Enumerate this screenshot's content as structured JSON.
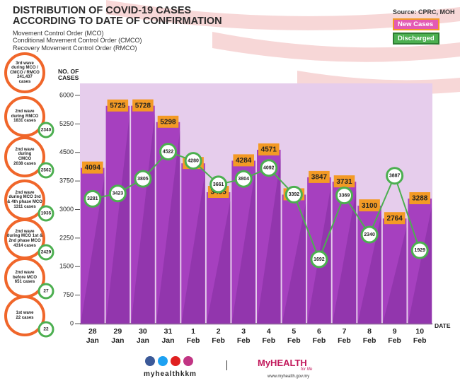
{
  "chart_data": {
    "type": "bar",
    "title": "DISTRIBUTION OF COVID-19 CASES\nACCORDING TO DATE OF CONFIRMATION",
    "notes": [
      "Movement Control Order (MCO)",
      "Conditional Movement Control Order (CMCO)",
      "Recovery Movement Control Order (RMCO)"
    ],
    "source": "Source: CPRC, MOH",
    "y_label": "NO. OF\nCASES",
    "x_label": "DATE",
    "categories": [
      "28\nJan",
      "29\nJan",
      "30\nJan",
      "31\nJan",
      "1\nFeb",
      "2\nFeb",
      "3\nFeb",
      "4\nFeb",
      "5\nFeb",
      "6\nFeb",
      "7\nFeb",
      "8\nFeb",
      "9\nFeb",
      "10\nFeb"
    ],
    "series": [
      {
        "name": "New Cases",
        "color": "#a640bf",
        "label_color": "#f39a25",
        "values": [
          4094,
          5725,
          5728,
          5298,
          4214,
          3455,
          4284,
          4571,
          3391,
          3847,
          3731,
          3100,
          2764,
          3288
        ]
      },
      {
        "name": "Discharged",
        "color": "#4caf50",
        "values": [
          3281,
          3423,
          3805,
          4522,
          4280,
          3661,
          3804,
          4092,
          3392,
          1692,
          3369,
          2340,
          3887,
          1929
        ]
      }
    ],
    "ylim": [
      0,
      6000
    ],
    "yticks": [
      0,
      750,
      1500,
      2250,
      3000,
      3750,
      4500,
      5250,
      6000
    ]
  },
  "waves": [
    {
      "label": "3rd wave\nduring MCO /\nCMCO / RMCO\n241,437\ncases"
    },
    {
      "label": "2nd wave\nduring RMCO\n1831 cases",
      "discharged": 2340
    },
    {
      "label": "2nd wave\nduring\nCMCO\n2038 cases",
      "discharged": 2562
    },
    {
      "label": "2nd wave\nduring MCO 3rd\n& 4th phase MCO\n1311 cases",
      "discharged": 1935
    },
    {
      "label": "2nd wave\nduring MCO 1st &\n2nd phase MCO\n4314 cases",
      "discharged": 2429
    },
    {
      "label": "2nd wave\nbefore MCO\n651 cases",
      "discharged": 27
    },
    {
      "label": "1st wave\n22 cases",
      "discharged": 22
    }
  ],
  "footer": {
    "handle": "myhealthkkm",
    "brand": "MyHEALTH",
    "tagline": "for life",
    "url": "www.myhealth.gov.my"
  }
}
